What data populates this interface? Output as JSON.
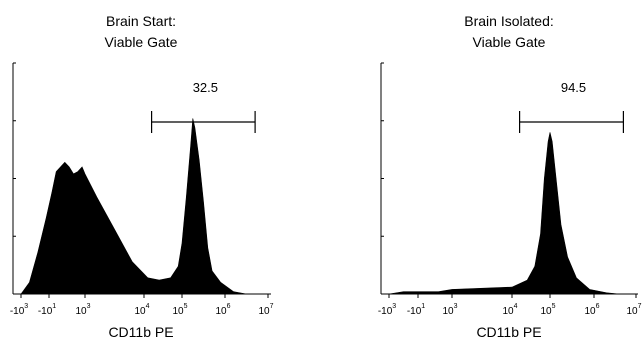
{
  "chart_data": [
    {
      "type": "area",
      "subtype": "flow-cytometry-histogram",
      "title_line1": "Brain Start:",
      "title_line2": "Viable Gate",
      "xlabel": "CD11b PE",
      "x_scale": "biexponential",
      "x_ticks": [
        {
          "base": "-10",
          "exp": "3"
        },
        {
          "base": "-10",
          "exp": "1"
        },
        {
          "base": "10",
          "exp": "3"
        },
        {
          "base": "10",
          "exp": "4"
        },
        {
          "base": "10",
          "exp": "5"
        },
        {
          "base": "10",
          "exp": "6"
        },
        {
          "base": "10",
          "exp": "7"
        }
      ],
      "gate": {
        "label": "32.5",
        "from_decade": 4.2,
        "to_decade": 6.7
      },
      "fill_color": "#000000",
      "histogram_points": [
        [
          -0.5,
          0
        ],
        [
          -0.2,
          0.05
        ],
        [
          0.1,
          0.18
        ],
        [
          0.4,
          0.33
        ],
        [
          0.7,
          0.44
        ],
        [
          1.0,
          0.53
        ],
        [
          1.3,
          0.55
        ],
        [
          1.6,
          0.57
        ],
        [
          1.9,
          0.55
        ],
        [
          2.2,
          0.52
        ],
        [
          2.5,
          0.53
        ],
        [
          2.8,
          0.55
        ],
        [
          3.0,
          0.52
        ],
        [
          3.2,
          0.42
        ],
        [
          3.5,
          0.28
        ],
        [
          3.8,
          0.14
        ],
        [
          4.1,
          0.07
        ],
        [
          4.4,
          0.06
        ],
        [
          4.7,
          0.07
        ],
        [
          4.9,
          0.12
        ],
        [
          5.0,
          0.22
        ],
        [
          5.1,
          0.42
        ],
        [
          5.2,
          0.64
        ],
        [
          5.25,
          0.76
        ],
        [
          5.3,
          0.72
        ],
        [
          5.4,
          0.58
        ],
        [
          5.5,
          0.4
        ],
        [
          5.6,
          0.2
        ],
        [
          5.7,
          0.1
        ],
        [
          5.9,
          0.05
        ],
        [
          6.2,
          0.01
        ],
        [
          6.5,
          0.0
        ]
      ]
    },
    {
      "type": "area",
      "subtype": "flow-cytometry-histogram",
      "title_line1": "Brain Isolated:",
      "title_line2": "Viable Gate",
      "xlabel": "CD11b PE",
      "x_scale": "biexponential",
      "x_ticks": [
        {
          "base": "-10",
          "exp": "3"
        },
        {
          "base": "-10",
          "exp": "1"
        },
        {
          "base": "10",
          "exp": "3"
        },
        {
          "base": "10",
          "exp": "4"
        },
        {
          "base": "10",
          "exp": "5"
        },
        {
          "base": "10",
          "exp": "6"
        },
        {
          "base": "10",
          "exp": "7"
        }
      ],
      "gate": {
        "label": "94.5",
        "from_decade": 4.2,
        "to_decade": 6.7
      },
      "fill_color": "#000000",
      "histogram_points": [
        [
          -0.5,
          0
        ],
        [
          0.0,
          0.01
        ],
        [
          1.0,
          0.01
        ],
        [
          2.0,
          0.01
        ],
        [
          3.0,
          0.02
        ],
        [
          4.0,
          0.03
        ],
        [
          4.4,
          0.06
        ],
        [
          4.6,
          0.12
        ],
        [
          4.75,
          0.26
        ],
        [
          4.85,
          0.5
        ],
        [
          4.95,
          0.66
        ],
        [
          5.0,
          0.7
        ],
        [
          5.05,
          0.66
        ],
        [
          5.15,
          0.48
        ],
        [
          5.25,
          0.3
        ],
        [
          5.4,
          0.16
        ],
        [
          5.6,
          0.07
        ],
        [
          5.9,
          0.02
        ],
        [
          6.3,
          0.005
        ],
        [
          6.6,
          0.0
        ]
      ]
    }
  ]
}
